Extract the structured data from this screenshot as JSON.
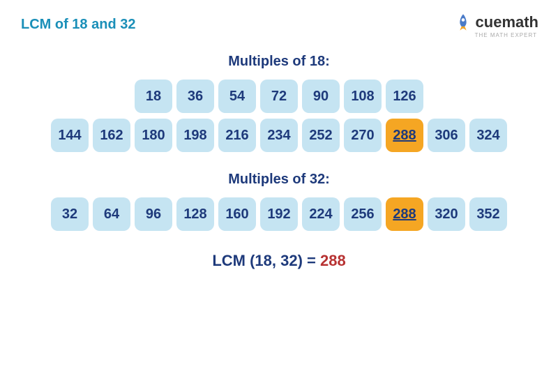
{
  "colors": {
    "title": "#1a8fb8",
    "section_label": "#1e3a7b",
    "tile_bg": "#c5e4f2",
    "tile_text": "#1e3a7b",
    "highlight_bg": "#f5a623",
    "highlight_text": "#1e3a7b",
    "result_lhs": "#1e3a7b",
    "result_rhs": "#b73232",
    "logo_text": "#333333",
    "logo_sub": "#aaaaaa"
  },
  "title": "LCM of 18 and 32",
  "logo": {
    "cue": "cue",
    "math": "math",
    "sub": "THE MATH EXPERT"
  },
  "sections": [
    {
      "label": "Multiples of 18:",
      "rows": [
        [
          {
            "v": "18",
            "hl": false
          },
          {
            "v": "36",
            "hl": false
          },
          {
            "v": "54",
            "hl": false
          },
          {
            "v": "72",
            "hl": false
          },
          {
            "v": "90",
            "hl": false
          },
          {
            "v": "108",
            "hl": false
          },
          {
            "v": "126",
            "hl": false
          }
        ],
        [
          {
            "v": "144",
            "hl": false
          },
          {
            "v": "162",
            "hl": false
          },
          {
            "v": "180",
            "hl": false
          },
          {
            "v": "198",
            "hl": false
          },
          {
            "v": "216",
            "hl": false
          },
          {
            "v": "234",
            "hl": false
          },
          {
            "v": "252",
            "hl": false
          },
          {
            "v": "270",
            "hl": false
          },
          {
            "v": "288",
            "hl": true
          },
          {
            "v": "306",
            "hl": false
          },
          {
            "v": "324",
            "hl": false
          }
        ]
      ]
    },
    {
      "label": "Multiples of 32:",
      "rows": [
        [
          {
            "v": "32",
            "hl": false
          },
          {
            "v": "64",
            "hl": false
          },
          {
            "v": "96",
            "hl": false
          },
          {
            "v": "128",
            "hl": false
          },
          {
            "v": "160",
            "hl": false
          },
          {
            "v": "192",
            "hl": false
          },
          {
            "v": "224",
            "hl": false
          },
          {
            "v": "256",
            "hl": false
          },
          {
            "v": "288",
            "hl": true
          },
          {
            "v": "320",
            "hl": false
          },
          {
            "v": "352",
            "hl": false
          }
        ]
      ]
    }
  ],
  "result": {
    "lhs": "LCM (18, 32) = ",
    "rhs": "288"
  }
}
